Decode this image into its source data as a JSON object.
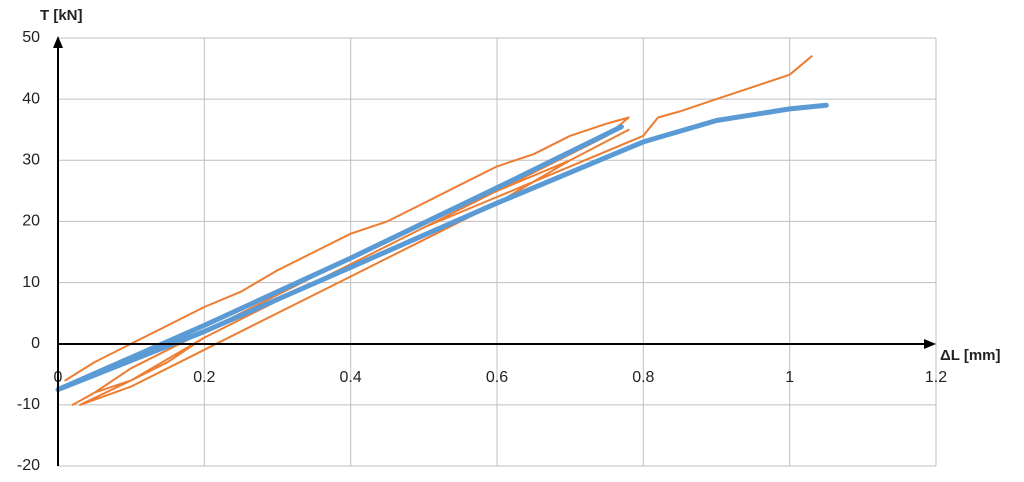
{
  "chart_data": {
    "type": "line",
    "x_label": "ΔL [mm]",
    "y_label": "T [kN]",
    "xlim": [
      0,
      1.2
    ],
    "xticks": [
      0,
      0.2,
      0.4,
      0.6,
      0.8,
      1,
      1.2
    ],
    "ylim": [
      -20,
      50
    ],
    "yticks": [
      -20,
      -10,
      0,
      10,
      20,
      30,
      40,
      50
    ],
    "grid": true,
    "series": [
      {
        "color": "#ed7d31",
        "width": 2,
        "x": [
          0.01,
          0.05,
          0.1,
          0.15,
          0.2,
          0.25,
          0.3,
          0.35,
          0.4,
          0.45,
          0.5,
          0.55,
          0.6,
          0.65,
          0.7,
          0.75,
          0.78,
          0.75,
          0.7,
          0.6,
          0.5,
          0.4,
          0.3,
          0.2,
          0.15,
          0.1,
          0.05,
          0.02,
          0.05,
          0.1,
          0.2,
          0.3,
          0.4,
          0.5,
          0.6,
          0.7,
          0.78,
          0.7,
          0.6,
          0.5,
          0.4,
          0.3,
          0.2,
          0.1,
          0.03,
          0.1,
          0.2,
          0.3,
          0.4,
          0.5,
          0.6,
          0.7,
          0.8,
          0.82,
          0.85,
          0.9,
          0.95,
          1.0,
          1.03
        ],
        "values": [
          -6,
          -3,
          0,
          3,
          6,
          8.5,
          12,
          15,
          18,
          20,
          23,
          26,
          29,
          31,
          34,
          36,
          37,
          34,
          31,
          25,
          19,
          13,
          7,
          1,
          -3,
          -6,
          -8,
          -10,
          -8,
          -4,
          2,
          8,
          14,
          20,
          25,
          30,
          35,
          30,
          23,
          17,
          11,
          5,
          -1,
          -7,
          -10,
          -6,
          1,
          7,
          13,
          19,
          24,
          29,
          34,
          37,
          38,
          40,
          42,
          44,
          47
        ]
      },
      {
        "color": "#5b9bd5",
        "width": 5,
        "x": [
          0.77,
          0.6,
          0.4,
          0.2,
          0.0,
          0.2,
          0.4,
          0.6,
          0.8,
          0.9,
          1.0,
          1.05
        ],
        "values": [
          35.5,
          25.5,
          14,
          3,
          -7.5,
          2,
          12.5,
          23,
          33,
          36.5,
          38.4,
          39
        ]
      }
    ]
  }
}
